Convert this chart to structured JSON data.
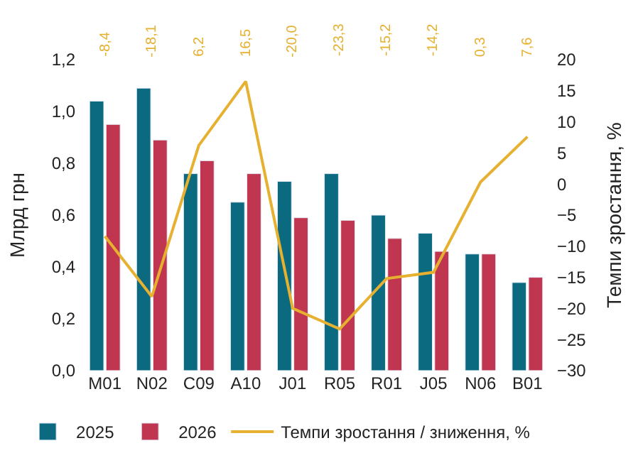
{
  "chart_data": {
    "type": "bar",
    "ylabel": "Млрд грн",
    "y2label": "Темпи зростання, %",
    "categories": [
      "M01",
      "N02",
      "C09",
      "A10",
      "J01",
      "R05",
      "R01",
      "J05",
      "N06",
      "B01"
    ],
    "series": [
      {
        "name": "2025",
        "color": "#0b6a80",
        "values": [
          1.04,
          1.09,
          0.76,
          0.65,
          0.73,
          0.76,
          0.6,
          0.53,
          0.45,
          0.34
        ]
      },
      {
        "name": "2026",
        "color": "#c0354f",
        "values": [
          0.95,
          0.89,
          0.81,
          0.76,
          0.59,
          0.58,
          0.51,
          0.46,
          0.45,
          0.36
        ]
      },
      {
        "name": "Темпи зростання / зниження, %",
        "type": "line",
        "axis": "y2",
        "color": "#e6b030",
        "values": [
          -8.4,
          -18.1,
          6.2,
          16.5,
          -20.0,
          -23.3,
          -15.2,
          -14.2,
          0.3,
          7.6
        ]
      }
    ],
    "annotations": [
      "-8,4",
      "-18,1",
      "6,2",
      "16,5",
      "-20,0",
      "-23,3",
      "-15,2",
      "-14,2",
      "0,3",
      "7,6"
    ],
    "ylim": [
      0,
      1.2
    ],
    "yticks": [
      {
        "value": 0,
        "label": "0,0"
      },
      {
        "value": 0.2,
        "label": "0,2"
      },
      {
        "value": 0.4,
        "label": "0,4"
      },
      {
        "value": 0.6,
        "label": "0,6"
      },
      {
        "value": 0.8,
        "label": "0,8"
      },
      {
        "value": 1.0,
        "label": "1,0"
      },
      {
        "value": 1.2,
        "label": "1,2"
      }
    ],
    "y2lim": [
      -30,
      20
    ],
    "y2ticks": [
      {
        "value": -30,
        "label": "−30"
      },
      {
        "value": -25,
        "label": "−25"
      },
      {
        "value": -20,
        "label": "−20"
      },
      {
        "value": -15,
        "label": "−15"
      },
      {
        "value": -10,
        "label": "−10"
      },
      {
        "value": -5,
        "label": "−5"
      },
      0,
      5,
      10,
      15,
      20
    ],
    "legend": "bottom",
    "marker": "none"
  }
}
